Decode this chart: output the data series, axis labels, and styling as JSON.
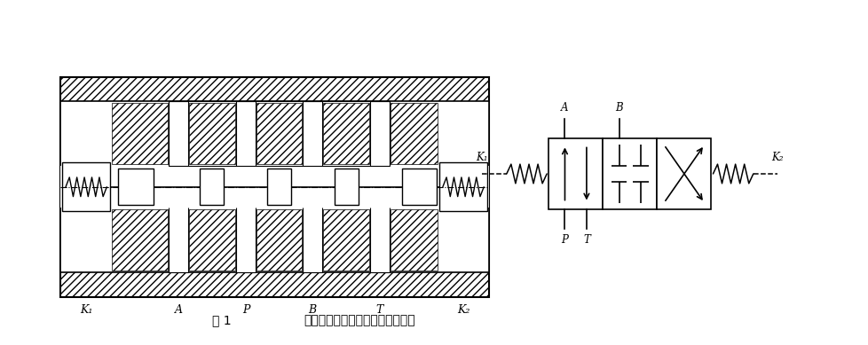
{
  "title_fig": "图 1",
  "title_text": "三位四通液动换向阀的工作原理图",
  "bg_color": "#ffffff",
  "label_K1_main": "K₁",
  "label_K2_main": "K₂",
  "label_A_main": "A",
  "label_P_main": "P",
  "label_B_main": "B",
  "label_T_main": "T",
  "label_A_sym": "A",
  "label_B_sym": "B",
  "label_K1_sym": "K₁",
  "label_K2_sym": "K₂",
  "label_P_sym": "P",
  "label_T_sym": "T"
}
